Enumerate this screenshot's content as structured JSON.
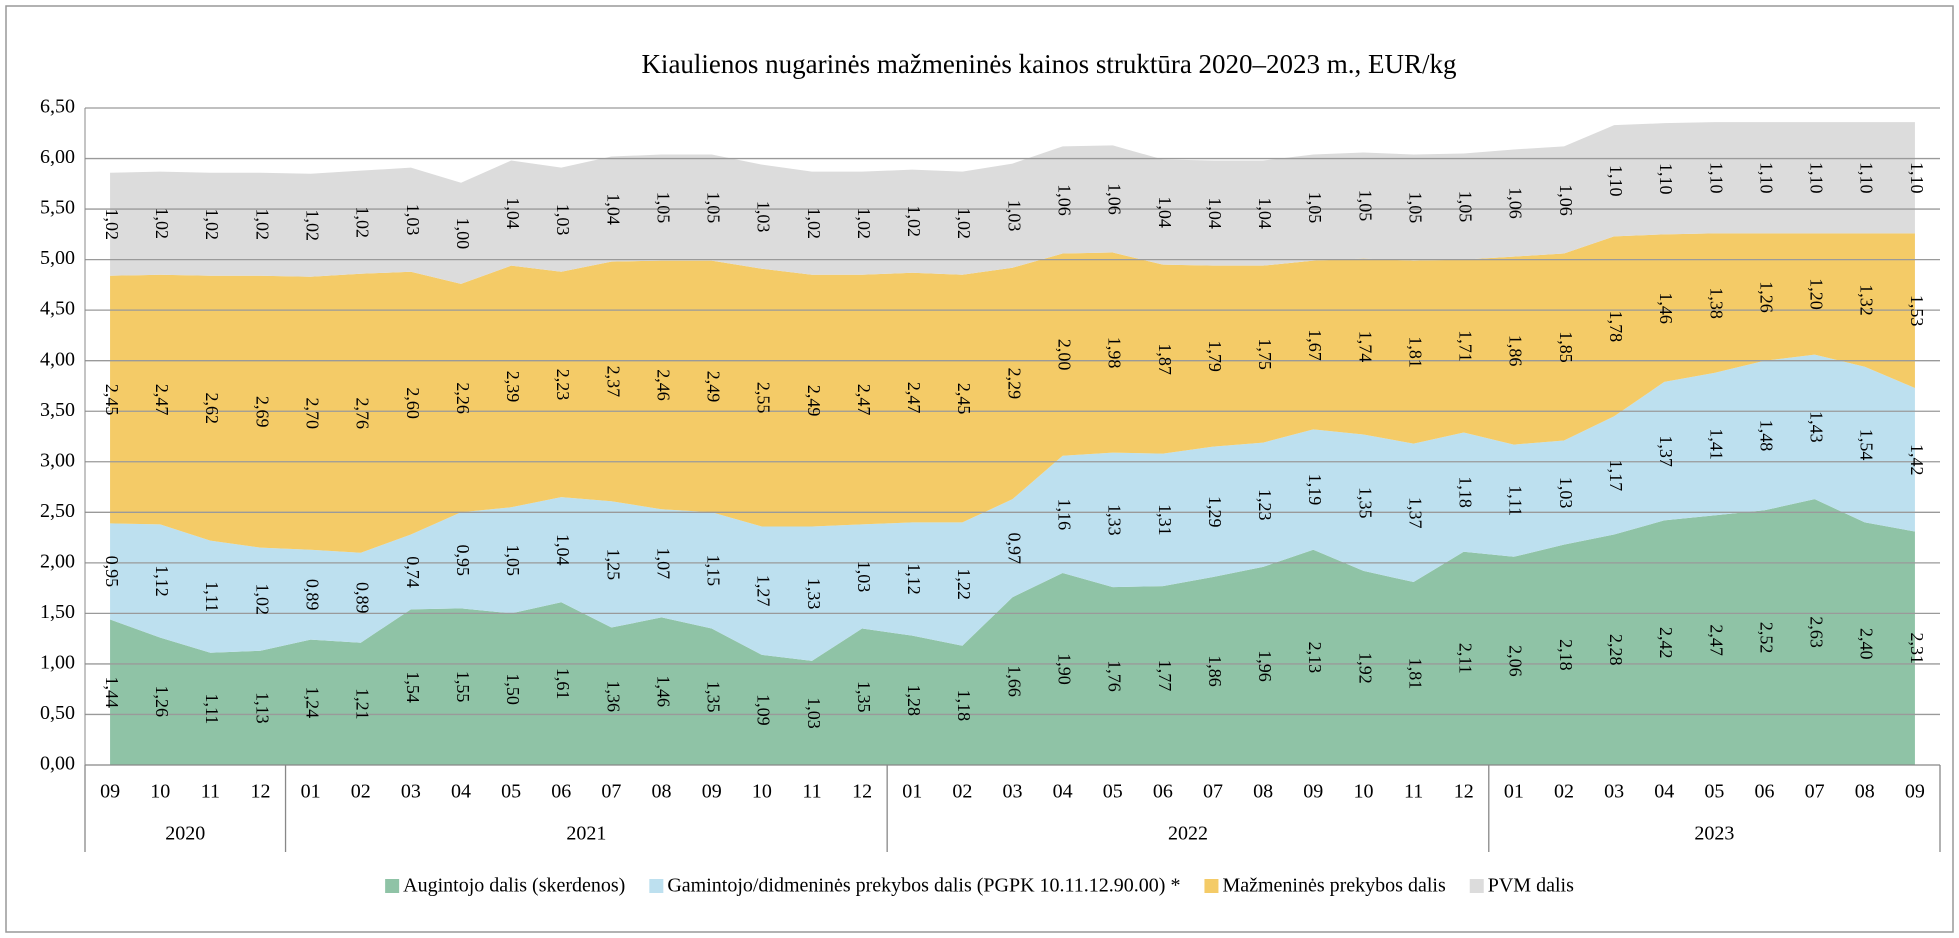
{
  "chart_data": {
    "type": "stacked_area",
    "title": "Kiaulienos nugarinės mažmeninės kainos struktūra 2020–2023 m., EUR/kg",
    "categories": [
      "09",
      "10",
      "11",
      "12",
      "01",
      "02",
      "03",
      "04",
      "05",
      "06",
      "07",
      "08",
      "09",
      "10",
      "11",
      "12",
      "01",
      "02",
      "03",
      "04",
      "05",
      "06",
      "07",
      "08",
      "09",
      "10",
      "11",
      "12",
      "01",
      "02",
      "03",
      "04",
      "05",
      "06",
      "07",
      "08",
      "09"
    ],
    "years": [
      "2020",
      "2021",
      "2022",
      "2023"
    ],
    "ylim": [
      0,
      6.5
    ],
    "yticks": [
      {
        "value": 0,
        "label": "0,00"
      },
      {
        "value": 0.5,
        "label": "0,50"
      },
      {
        "value": 1,
        "label": "1,00"
      },
      {
        "value": 1.5,
        "label": "1,50"
      },
      {
        "value": 2,
        "label": "2,00"
      },
      {
        "value": 2.5,
        "label": "2,50"
      },
      {
        "value": 3,
        "label": "3,00"
      },
      {
        "value": 3.5,
        "label": "3,50"
      },
      {
        "value": 4,
        "label": "4,00"
      },
      {
        "value": 4.5,
        "label": "4,50"
      },
      {
        "value": 5,
        "label": "5,00"
      },
      {
        "value": 5.5,
        "label": "5,50"
      },
      {
        "value": 6,
        "label": "6,00"
      },
      {
        "value": 6.5,
        "label": "6,50"
      }
    ],
    "grid": true,
    "legend": "bottom",
    "series": [
      {
        "name": "Augintojo dalis (skerdenos)",
        "color": "#8fc3a6",
        "values": [
          1.44,
          1.26,
          1.11,
          1.13,
          1.24,
          1.21,
          1.54,
          1.55,
          1.5,
          1.61,
          1.36,
          1.46,
          1.35,
          1.09,
          1.03,
          1.35,
          1.28,
          1.18,
          1.66,
          1.9,
          1.76,
          1.77,
          1.86,
          1.96,
          2.13,
          1.92,
          1.81,
          2.11,
          2.06,
          2.18,
          2.28,
          2.42,
          2.47,
          2.52,
          2.63,
          2.4,
          2.31
        ],
        "value_labels": [
          "1,44",
          "1,26",
          "1,11",
          "1,13",
          "1,24",
          "1,21",
          "1,54",
          "1,55",
          "1,50",
          "1,61",
          "1,36",
          "1,46",
          "1,35",
          "1,09",
          "1,03",
          "1,35",
          "1,28",
          "1,18",
          "1,66",
          "1,90",
          "1,76",
          "1,77",
          "1,86",
          "1,96",
          "2,13",
          "1,92",
          "1,81",
          "2,11",
          "2,06",
          "2,18",
          "2,28",
          "2,42",
          "2,47",
          "2,52",
          "2,63",
          "2,40",
          "2,31"
        ]
      },
      {
        "name": "Gamintojo/didmeninės prekybos dalis (PGPK 10.11.12.90.00) *",
        "color": "#bde0ef",
        "values": [
          0.95,
          1.12,
          1.11,
          1.02,
          0.89,
          0.89,
          0.74,
          0.95,
          1.05,
          1.04,
          1.25,
          1.07,
          1.15,
          1.27,
          1.33,
          1.03,
          1.12,
          1.22,
          0.97,
          1.16,
          1.33,
          1.31,
          1.29,
          1.23,
          1.19,
          1.35,
          1.37,
          1.18,
          1.11,
          1.03,
          1.17,
          1.37,
          1.41,
          1.48,
          1.43,
          1.54,
          1.42
        ],
        "value_labels": [
          "0,95",
          "1,12",
          "1,11",
          "1,02",
          "0,89",
          "0,89",
          "0,74",
          "0,95",
          "1,05",
          "1,04",
          "1,25",
          "1,07",
          "1,15",
          "1,27",
          "1,33",
          "1,03",
          "1,12",
          "1,22",
          "0,97",
          "1,16",
          "1,33",
          "1,31",
          "1,29",
          "1,23",
          "1,19",
          "1,35",
          "1,37",
          "1,18",
          "1,11",
          "1,03",
          "1,17",
          "1,37",
          "1,41",
          "1,48",
          "1,43",
          "1,54",
          "1,42"
        ]
      },
      {
        "name": "Mažmeninės prekybos dalis",
        "color": "#f4cb67",
        "values": [
          2.45,
          2.47,
          2.62,
          2.69,
          2.7,
          2.76,
          2.6,
          2.26,
          2.39,
          2.23,
          2.37,
          2.46,
          2.49,
          2.55,
          2.49,
          2.47,
          2.47,
          2.45,
          2.29,
          2.0,
          1.98,
          1.87,
          1.79,
          1.75,
          1.67,
          1.74,
          1.81,
          1.71,
          1.86,
          1.85,
          1.78,
          1.46,
          1.38,
          1.26,
          1.2,
          1.32,
          1.53
        ],
        "value_labels": [
          "2,45",
          "2,47",
          "2,62",
          "2,69",
          "2,70",
          "2,76",
          "2,60",
          "2,26",
          "2,39",
          "2,23",
          "2,37",
          "2,46",
          "2,49",
          "2,55",
          "2,49",
          "2,47",
          "2,47",
          "2,45",
          "2,29",
          "2,00",
          "1,98",
          "1,87",
          "1,79",
          "1,75",
          "1,67",
          "1,74",
          "1,81",
          "1,71",
          "1,86",
          "1,85",
          "1,78",
          "1,46",
          "1,38",
          "1,26",
          "1,20",
          "1,32",
          "1,53"
        ]
      },
      {
        "name": "PVM dalis",
        "color": "#dcdcdc",
        "values": [
          1.02,
          1.02,
          1.02,
          1.02,
          1.02,
          1.02,
          1.03,
          1.0,
          1.04,
          1.03,
          1.04,
          1.05,
          1.05,
          1.03,
          1.02,
          1.02,
          1.02,
          1.02,
          1.03,
          1.06,
          1.06,
          1.04,
          1.04,
          1.04,
          1.05,
          1.05,
          1.05,
          1.05,
          1.06,
          1.06,
          1.1,
          1.1,
          1.1,
          1.1,
          1.1,
          1.1,
          1.1
        ],
        "value_labels": [
          "1,02",
          "1,02",
          "1,02",
          "1,02",
          "1,02",
          "1,02",
          "1,03",
          "1,00",
          "1,04",
          "1,03",
          "1,04",
          "1,05",
          "1,05",
          "1,03",
          "1,02",
          "1,02",
          "1,02",
          "1,02",
          "1,03",
          "1,06",
          "1,06",
          "1,04",
          "1,04",
          "1,04",
          "1,05",
          "1,05",
          "1,05",
          "1,05",
          "1,06",
          "1,06",
          "1,10",
          "1,10",
          "1,10",
          "1,10",
          "1,10",
          "1,10",
          "1,10"
        ]
      }
    ]
  }
}
